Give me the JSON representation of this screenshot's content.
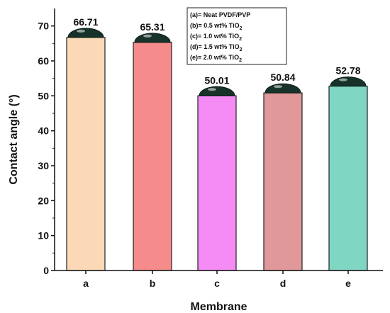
{
  "chart_data": {
    "type": "bar",
    "categories": [
      "a",
      "b",
      "c",
      "d",
      "e"
    ],
    "values": [
      66.71,
      65.31,
      50.01,
      50.84,
      52.78
    ],
    "data_labels": [
      "66.71",
      "65.31",
      "50.01",
      "50.84",
      "52.78"
    ],
    "colors": [
      "#fbd9b6",
      "#f58b8b",
      "#f58cf5",
      "#e0989a",
      "#7fd6c2"
    ],
    "droplet_color": "#17322a",
    "xlabel": "Membrane",
    "ylabel": "Contact angle (°)",
    "ylim": [
      0,
      75
    ],
    "yticks": [
      0,
      10,
      20,
      30,
      40,
      50,
      60,
      70
    ],
    "grid": false,
    "legend": {
      "position": "top-right",
      "entries": [
        {
          "prefix": "(a)= Neat PVDF/PVP",
          "sub": ""
        },
        {
          "prefix": "(b)= 0.5 wt% TiO",
          "sub": "2"
        },
        {
          "prefix": "(c)= 1.0 wt% TiO",
          "sub": "2"
        },
        {
          "prefix": "(d)= 1.5 wt% TiO",
          "sub": "2"
        },
        {
          "prefix": "(e)= 2.0 wt% TiO",
          "sub": "2"
        }
      ]
    }
  }
}
